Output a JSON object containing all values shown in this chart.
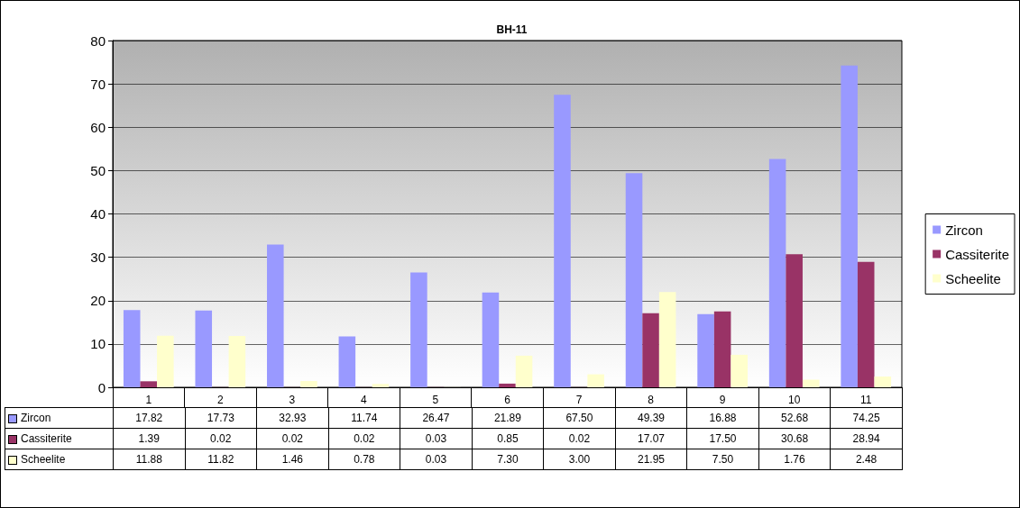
{
  "chart_data": {
    "type": "bar",
    "title": "BH-11",
    "categories": [
      "1",
      "2",
      "3",
      "4",
      "5",
      "6",
      "7",
      "8",
      "9",
      "10",
      "11"
    ],
    "series": [
      {
        "name": "Zircon",
        "color": "#9999ff",
        "values": [
          17.82,
          17.73,
          32.93,
          11.74,
          26.47,
          21.89,
          67.5,
          49.39,
          16.88,
          52.68,
          74.25
        ],
        "value_labels": [
          "17.82",
          "17.73",
          "32.93",
          "11.74",
          "26.47",
          "21.89",
          "67.50",
          "49.39",
          "16.88",
          "52.68",
          "74.25"
        ]
      },
      {
        "name": "Cassiterite",
        "color": "#993366",
        "values": [
          1.39,
          0.02,
          0.02,
          0.02,
          0.03,
          0.85,
          0.02,
          17.07,
          17.5,
          30.68,
          28.94
        ],
        "value_labels": [
          "1.39",
          "0.02",
          "0.02",
          "0.02",
          "0.03",
          "0.85",
          "0.02",
          "17.07",
          "17.50",
          "30.68",
          "28.94"
        ]
      },
      {
        "name": "Scheelite",
        "color": "#ffffcc",
        "values": [
          11.88,
          11.82,
          1.46,
          0.78,
          0.03,
          7.3,
          3.0,
          21.95,
          7.5,
          1.76,
          2.48
        ],
        "value_labels": [
          "11.88",
          "11.82",
          "1.46",
          "0.78",
          "0.03",
          "7.30",
          "3.00",
          "21.95",
          "7.50",
          "1.76",
          "2.48"
        ]
      }
    ],
    "ylim": [
      0,
      80
    ],
    "yticks": [
      0,
      10,
      20,
      30,
      40,
      50,
      60,
      70,
      80
    ],
    "grid": "y",
    "legend": "right"
  }
}
